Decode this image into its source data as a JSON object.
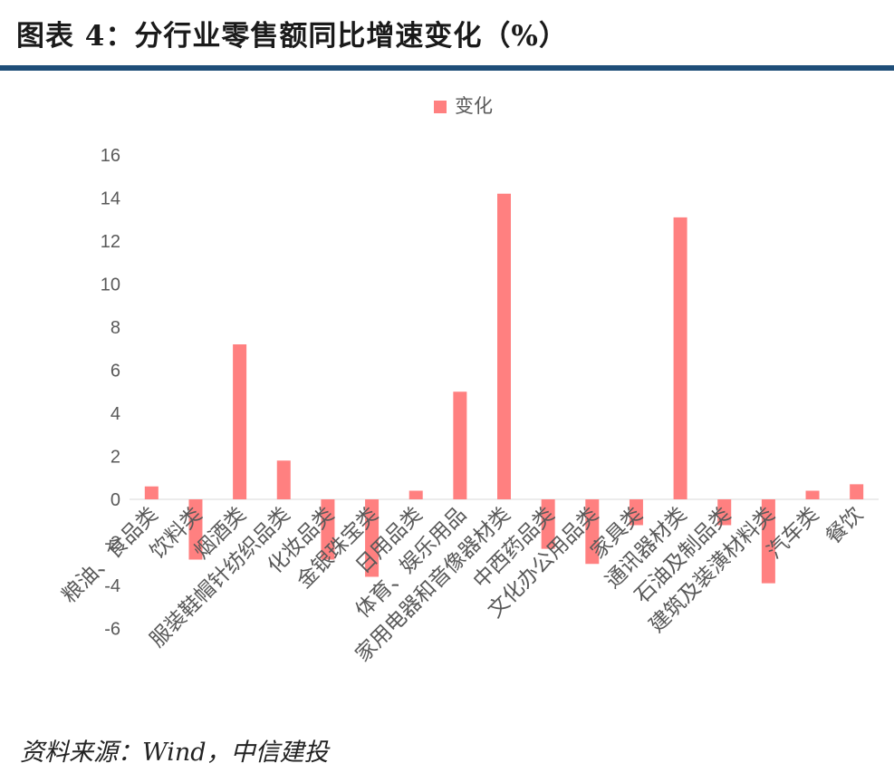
{
  "header": {
    "title": "图表 4：分行业零售额同比增速变化（%）"
  },
  "footer": {
    "source": "资料来源：Wind，中信建投"
  },
  "colors": {
    "bar": "#ff8080",
    "rule": "#1f4e79",
    "axis_text": "#595959"
  },
  "chart_data": {
    "type": "bar",
    "title": "",
    "xlabel": "",
    "ylabel": "",
    "ylim": [
      -6,
      16
    ],
    "yticks": [
      16,
      14,
      12,
      10,
      8,
      6,
      4,
      2,
      0,
      -2,
      -4,
      -6
    ],
    "grid": false,
    "legend_position": "top-center",
    "categories": [
      "粮油、食品类",
      "饮料类",
      "烟酒类",
      "服装鞋帽针纺织品类",
      "化妆品类",
      "金银珠宝类",
      "日用品类",
      "体育、娱乐用品",
      "家用电器和音像器材类",
      "中西药品类",
      "文化办公用品类",
      "家具类",
      "通讯器材类",
      "石油及制品类",
      "建筑及装潢材料类",
      "汽车类",
      "餐饮"
    ],
    "series": [
      {
        "name": "变化",
        "color": "#ff8080",
        "values": [
          0.6,
          -2.8,
          7.2,
          1.8,
          -2.8,
          -3.6,
          0.4,
          5.0,
          14.2,
          -2.3,
          -3.0,
          -1.2,
          13.1,
          -1.2,
          -3.9,
          0.4,
          0.7
        ]
      }
    ]
  }
}
